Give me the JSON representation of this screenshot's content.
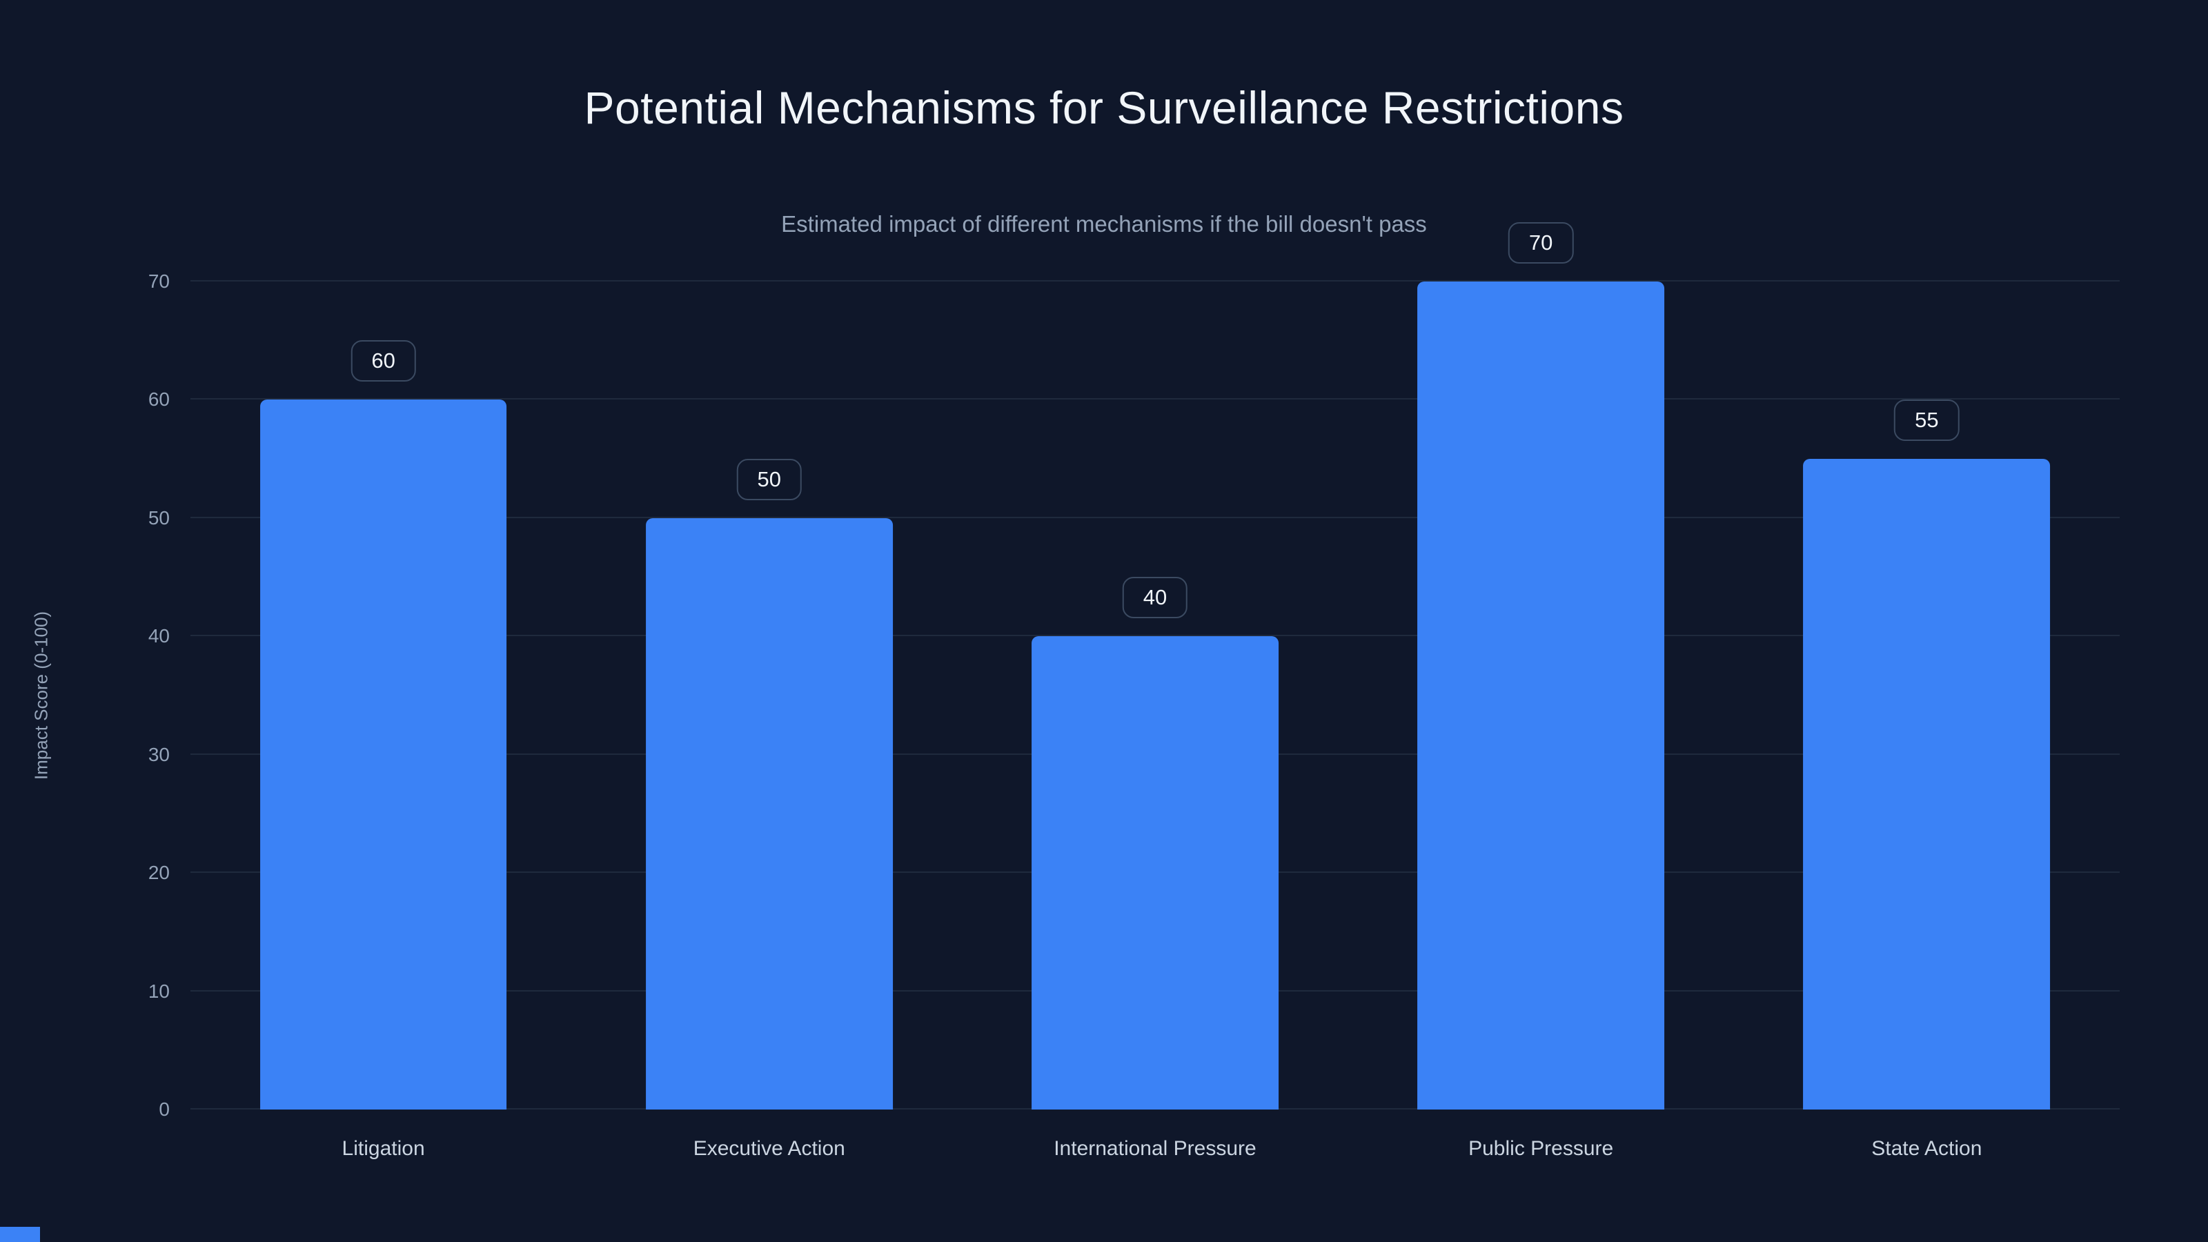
{
  "chart_data": {
    "type": "bar",
    "title": "Potential Mechanisms for Surveillance Restrictions",
    "subtitle": "Estimated impact of different mechanisms if the bill doesn't pass",
    "ylabel": "Impact Score (0-100)",
    "categories": [
      "Litigation",
      "Executive Action",
      "International Pressure",
      "Public Pressure",
      "State Action"
    ],
    "values": [
      60,
      50,
      40,
      70,
      55
    ],
    "ylim": [
      0,
      70
    ],
    "yticks": [
      0,
      10,
      20,
      30,
      40,
      50,
      60,
      70
    ],
    "grid": "horizontal",
    "legend_position": "none",
    "bar_color": "#3b82f6",
    "background_color": "#0f172a",
    "grid_color": "#1f2a3d",
    "tick_color": "#94a3b8",
    "category_label_color": "#cbd5e1",
    "title_color": "#f1f5f9"
  }
}
